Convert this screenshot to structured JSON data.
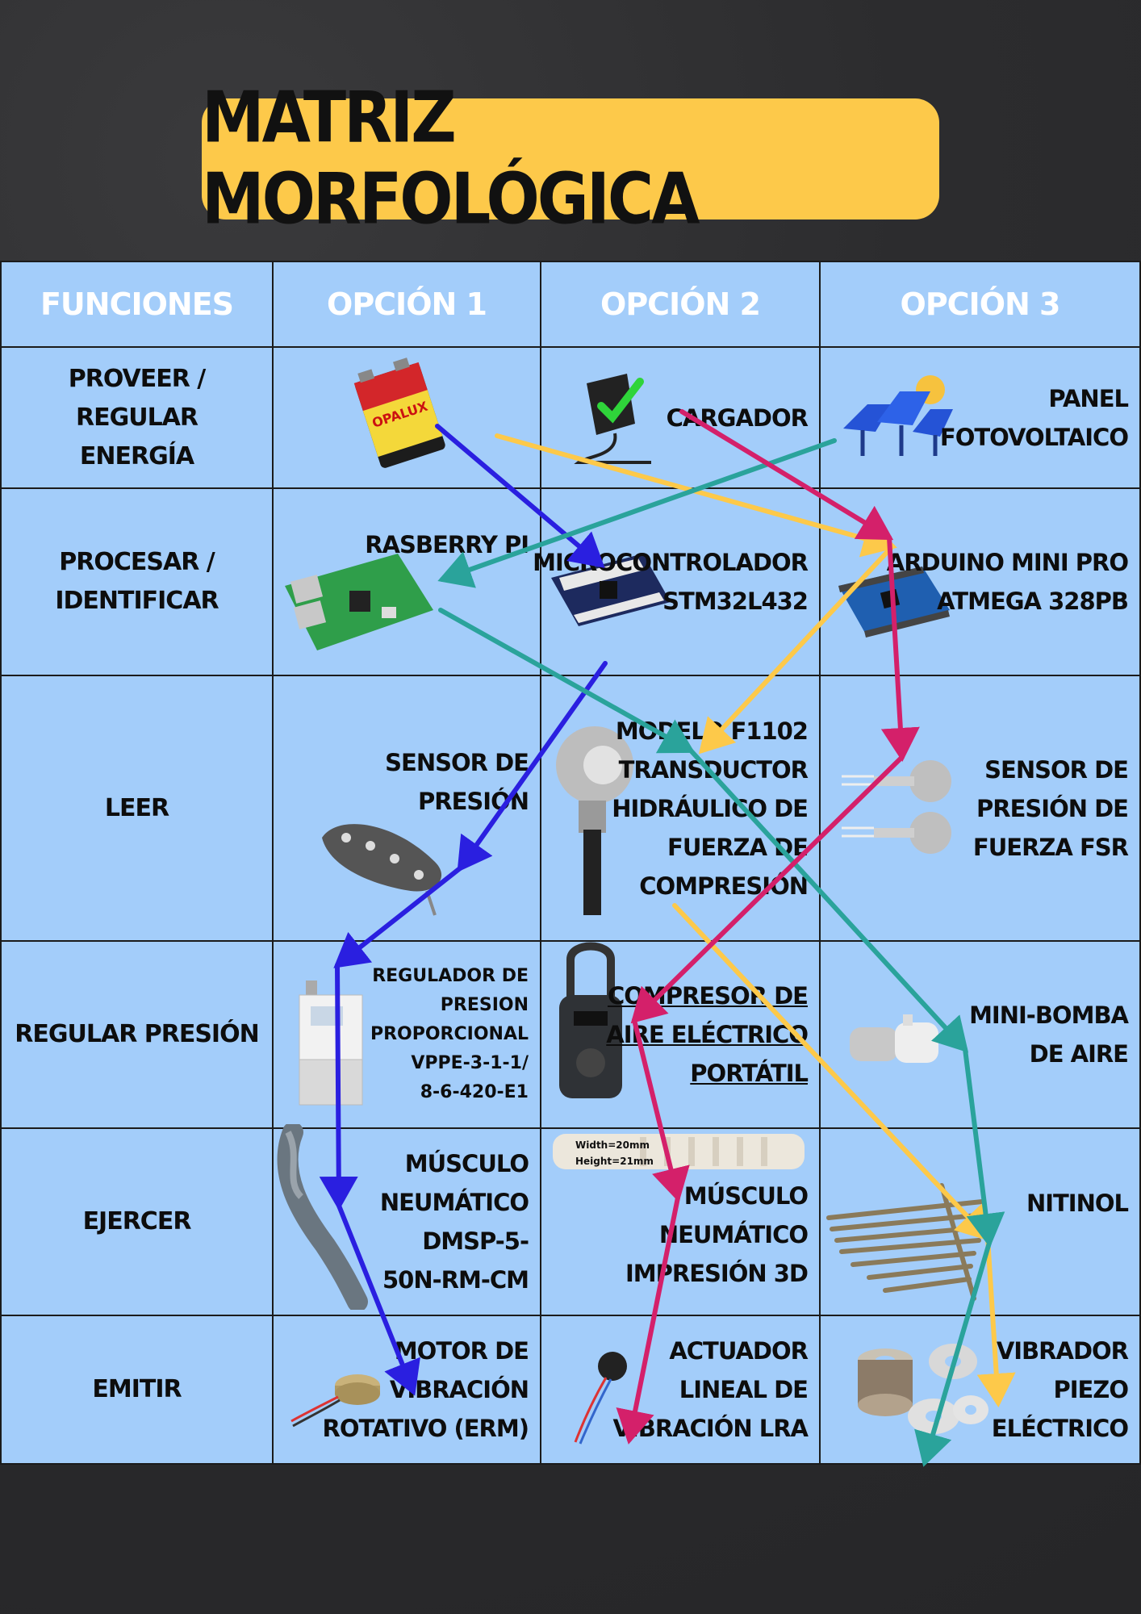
{
  "title": "MATRIZ MORFOLÓGICA",
  "headers": [
    "FUNCIONES",
    "OPCIÓN 1",
    "OPCIÓN 2",
    "OPCIÓN 3"
  ],
  "rows": [
    {
      "function": "PROVEER / REGULAR\nENERGÍA",
      "options": [
        {
          "label": "",
          "icon": "battery-9v-icon",
          "battery_text": "OPALUX"
        },
        {
          "label": "CARGADOR",
          "icon": "charger-icon"
        },
        {
          "label": "PANEL\nFOTOVOLTAICO",
          "icon": "solar-panel-icon"
        }
      ]
    },
    {
      "function": "PROCESAR /\nIDENTIFICAR",
      "options": [
        {
          "label": "RASBERRY PI",
          "icon": "raspberry-pi-board-icon"
        },
        {
          "label": "MICROCONTROLADOR\nSTM32L432",
          "icon": "stm32-board-icon"
        },
        {
          "label": "ARDUINO MINI PRO\nATMEGA 328PB",
          "icon": "arduino-board-icon"
        }
      ]
    },
    {
      "function": "LEER",
      "options": [
        {
          "label": "SENSOR DE\nPRESIÓN",
          "icon": "pressure-insole-icon"
        },
        {
          "label": "MODELO F1102\nTRANSDUCTOR\nHIDRÁULICO DE\nFUERZA DE\nCOMPRESIÓN",
          "icon": "load-cell-icon"
        },
        {
          "label": "SENSOR DE\nPRESIÓN DE\nFUERZA FSR",
          "icon": "fsr-sensor-icon"
        }
      ]
    },
    {
      "function": "REGULAR PRESIÓN",
      "options": [
        {
          "label": "REGULADOR DE\nPRESION\nPROPORCIONAL\nVPPE-3-1-1/\n8-6-420-E1",
          "icon": "pressure-regulator-icon"
        },
        {
          "label": "COMPRESOR DE\nAIRE ELÉCTRICO\nPORTÁTIL",
          "icon": "air-compressor-icon"
        },
        {
          "label": "MINI-BOMBA\nDE AIRE",
          "icon": "mini-pump-icon"
        }
      ]
    },
    {
      "function": "EJERCER",
      "options": [
        {
          "label": "MÚSCULO\nNEUMÁTICO\nDMSP-5-\n50N-RM-CM",
          "icon": "pneumatic-muscle-icon"
        },
        {
          "label": "MÚSCULO NEUMÁTICO\nIMPRESIÓN 3D",
          "icon": "printed-muscle-icon",
          "dims": [
            "Width=20mm",
            "Height=21mm"
          ]
        },
        {
          "label": "NITINOL",
          "icon": "nitinol-wires-icon"
        }
      ]
    },
    {
      "function": "EMITIR",
      "options": [
        {
          "label": "MOTOR DE\nVIBRACIÓN\nROTATIVO (ERM)",
          "icon": "erm-motor-icon"
        },
        {
          "label": "ACTUADOR\nLINEAL DE\nVIBRACIÓN LRA",
          "icon": "lra-actuator-icon"
        },
        {
          "label": "VIBRADOR\nPIEZO\nELÉCTRICO",
          "icon": "piezo-discs-icon"
        }
      ]
    }
  ],
  "colors": {
    "title_bg": "#fdc94a",
    "cell_bg": "#a3cdfa",
    "background": "#2f2f31",
    "blue": "#2a1fe0",
    "yellow": "#fdc94a",
    "teal": "#2aa39b",
    "magenta": "#d4206a"
  },
  "paths": [
    {
      "name": "blue-path",
      "color": "#2a1fe0",
      "sequence": [
        "Opción 1",
        "Opción 2",
        "Opción 1",
        "Opción 1",
        "Opción 1",
        "Opción 1"
      ]
    },
    {
      "name": "yellow-path",
      "color": "#fdc94a",
      "sequence": [
        "Opción 1",
        "Opción 3",
        "Opción 2",
        "Opción 3",
        "Opción 3",
        "Opción 3"
      ]
    },
    {
      "name": "teal-path",
      "color": "#2aa39b",
      "sequence": [
        "Opción 3",
        "Opción 1",
        "Opción 2",
        "Opción 3",
        "Opción 3",
        "Opción 3"
      ]
    },
    {
      "name": "magenta-path",
      "color": "#d4206a",
      "sequence": [
        "Opción 2",
        "Opción 3",
        "Opción 3",
        "Opción 2",
        "Opción 2",
        "Opción 2"
      ]
    }
  ]
}
